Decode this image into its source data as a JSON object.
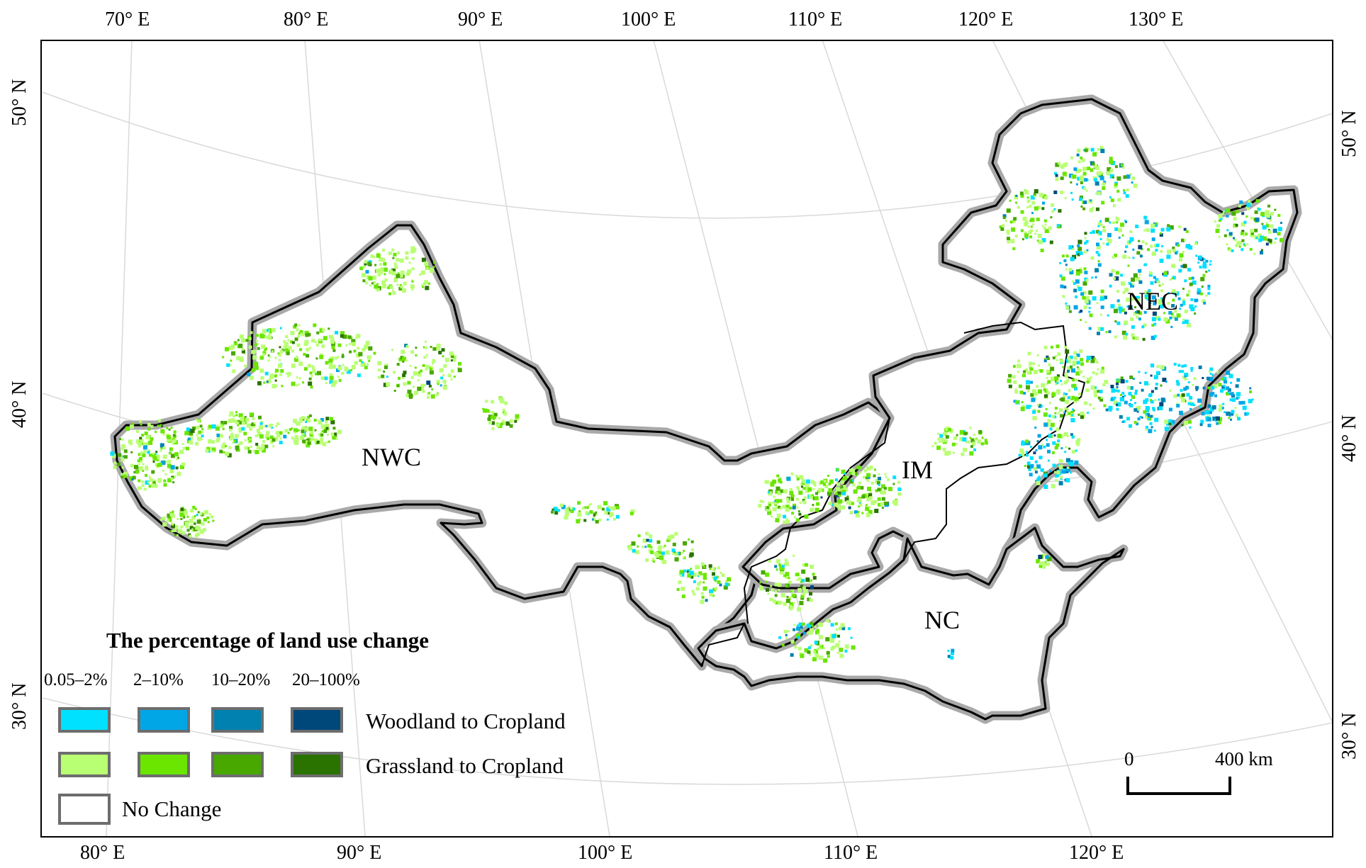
{
  "legend": {
    "title": "The percentage of land use change",
    "classes": [
      "0.05–2%",
      "2–10%",
      "10–20%",
      "20–100%"
    ],
    "woodland_label": "Woodland to Cropland",
    "grassland_label": "Grassland to Cropland",
    "nochange_label": "No Change",
    "woodland_colors": [
      "#00e0ff",
      "#00a6e6",
      "#0081b0",
      "#00477a"
    ],
    "grassland_colors": [
      "#b9ff73",
      "#6ae600",
      "#48a800",
      "#2a7300"
    ],
    "nochange_color": "#ffffff"
  },
  "regions": [
    "NWC",
    "IM",
    "NEC",
    "NC"
  ],
  "graticule": {
    "top_labels": [
      "70° E",
      "80° E",
      "90° E",
      "100° E",
      "110° E",
      "120° E",
      "130° E"
    ],
    "bottom_labels": [
      "80° E",
      "90° E",
      "100° E",
      "110° E",
      "120° E"
    ],
    "left_labels": [
      "50° N",
      "40° N",
      "30° N"
    ],
    "right_labels": [
      "50° N",
      "40° N",
      "30° N"
    ]
  },
  "scale_bar": {
    "zero": "0",
    "max": "400 km"
  }
}
